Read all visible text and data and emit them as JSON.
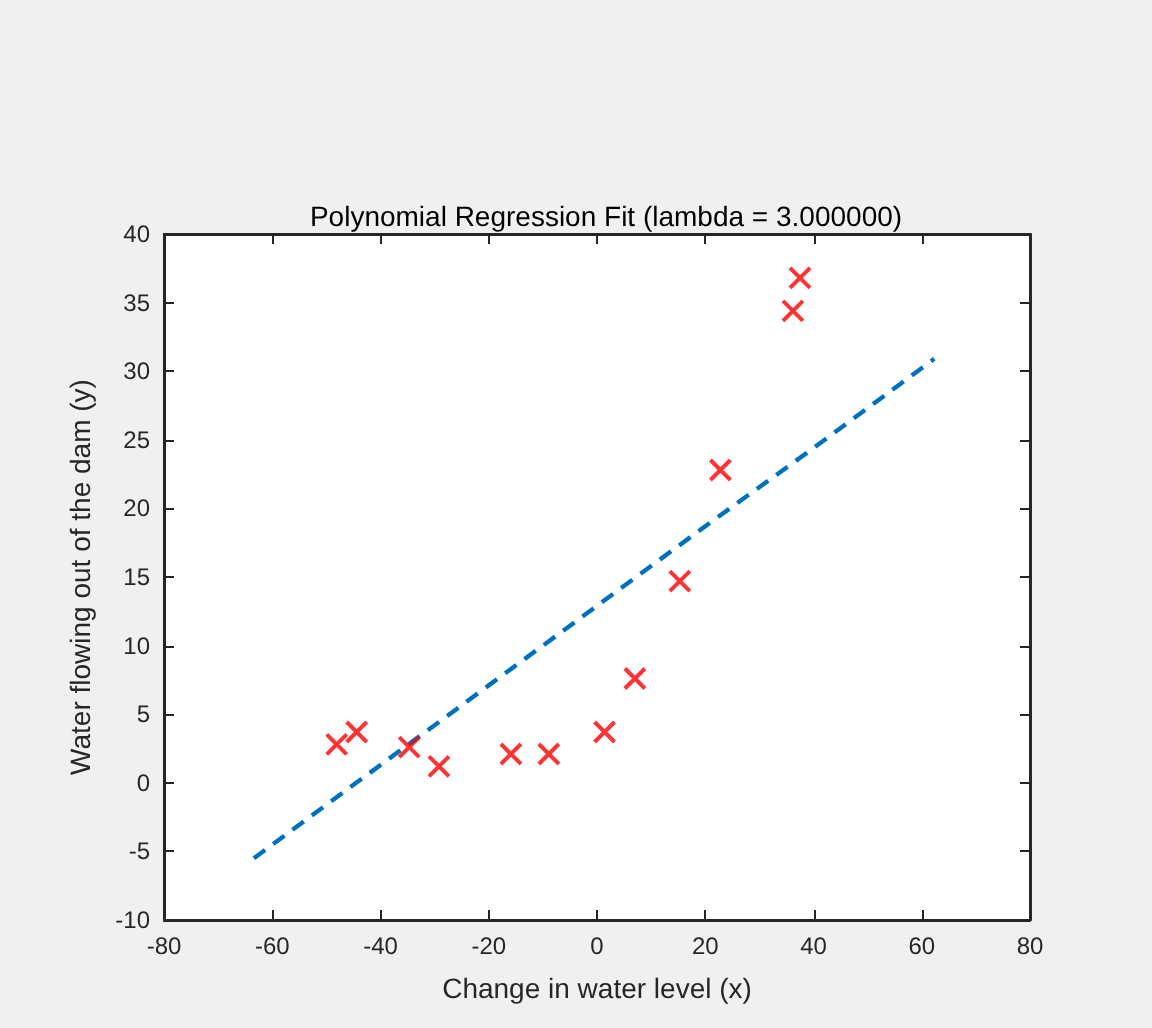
{
  "chart_data": {
    "type": "scatter",
    "title": "Polynomial Regression Fit (lambda = 3.000000)",
    "xlabel": "Change in water level (x)",
    "ylabel": "Water flowing out of the dam (y)",
    "xlim": [
      -80,
      80
    ],
    "xticks": [
      -80,
      -60,
      -40,
      -20,
      0,
      20,
      40,
      60,
      80
    ],
    "ylim": [
      -10,
      40
    ],
    "yticks": [
      -10,
      -5,
      0,
      5,
      10,
      15,
      20,
      25,
      30,
      35,
      40
    ],
    "grid": false,
    "series": [
      {
        "color": "#ff0000",
        "marker": "cross",
        "x": [
          -48.1,
          -44.4,
          -34.7,
          -29.2,
          -15.9,
          -8.9,
          1.4,
          7.0,
          15.3,
          22.8,
          36.2,
          37.5
        ],
        "values": [
          2.8,
          3.7,
          2.6,
          1.2,
          2.1,
          2.1,
          3.7,
          7.6,
          14.7,
          22.8,
          34.4,
          36.8
        ]
      },
      {
        "type": "line",
        "color": "#0072bd",
        "marker": "none",
        "line_style": "dashed",
        "x": [
          -63.4,
          -40,
          -20,
          0,
          20,
          40,
          62.3
        ],
        "values": [
          -5.5,
          1.3,
          7.1,
          12.9,
          18.7,
          24.4,
          30.9
        ]
      }
    ]
  }
}
